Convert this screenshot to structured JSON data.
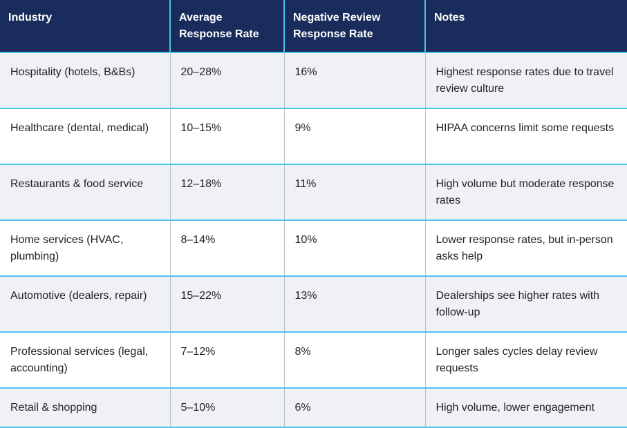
{
  "table": {
    "headers": [
      "Industry",
      "Average Response Rate",
      "Negative Review Response Rate",
      "Notes"
    ],
    "rows": [
      [
        "Hospitality (hotels, B&Bs)",
        "20–28%",
        "16%",
        "Highest response rates due to travel review culture"
      ],
      [
        "Healthcare (dental, medical)",
        "10–15%",
        "9%",
        "HIPAA concerns limit some requests"
      ],
      [
        "Restaurants & food service",
        "12–18%",
        "11%",
        "High volume but moderate response rates"
      ],
      [
        "Home services (HVAC, plumbing)",
        "8–14%",
        "10%",
        "Lower response rates, but in-person asks help"
      ],
      [
        "Automotive (dealers, repair)",
        "15–22%",
        "13%",
        "Dealerships see higher rates with follow-up"
      ],
      [
        "Professional services (legal, accounting)",
        "7–12%",
        "8%",
        "Longer sales cycles delay review requests"
      ],
      [
        "Retail & shopping",
        "5–10%",
        "6%",
        "High volume, lower engagement"
      ]
    ]
  },
  "colors": {
    "header_background": "#1a2c5b",
    "divider_accent": "#4cc4ee",
    "stripe_background": "#eff1f6"
  }
}
